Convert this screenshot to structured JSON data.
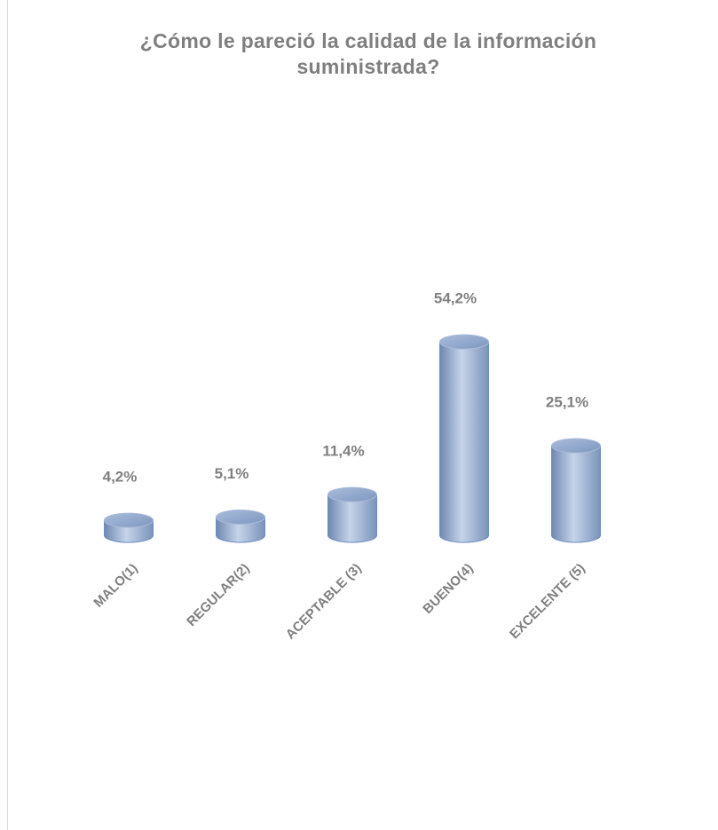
{
  "chart_data": {
    "type": "bar",
    "title": "¿Cómo le pareció la calidad de la información suministrada?",
    "categories": [
      "MALO(1)",
      "REGULAR(2)",
      "ACEPTABLE (3)",
      "BUENO(4)",
      "EXCELENTE (5)"
    ],
    "values": [
      4.2,
      5.1,
      11.4,
      54.2,
      25.1
    ],
    "value_labels": [
      "4,2%",
      "5,1%",
      "11,4%",
      "54,2%",
      "25,1%"
    ],
    "color": "#95abd0"
  }
}
